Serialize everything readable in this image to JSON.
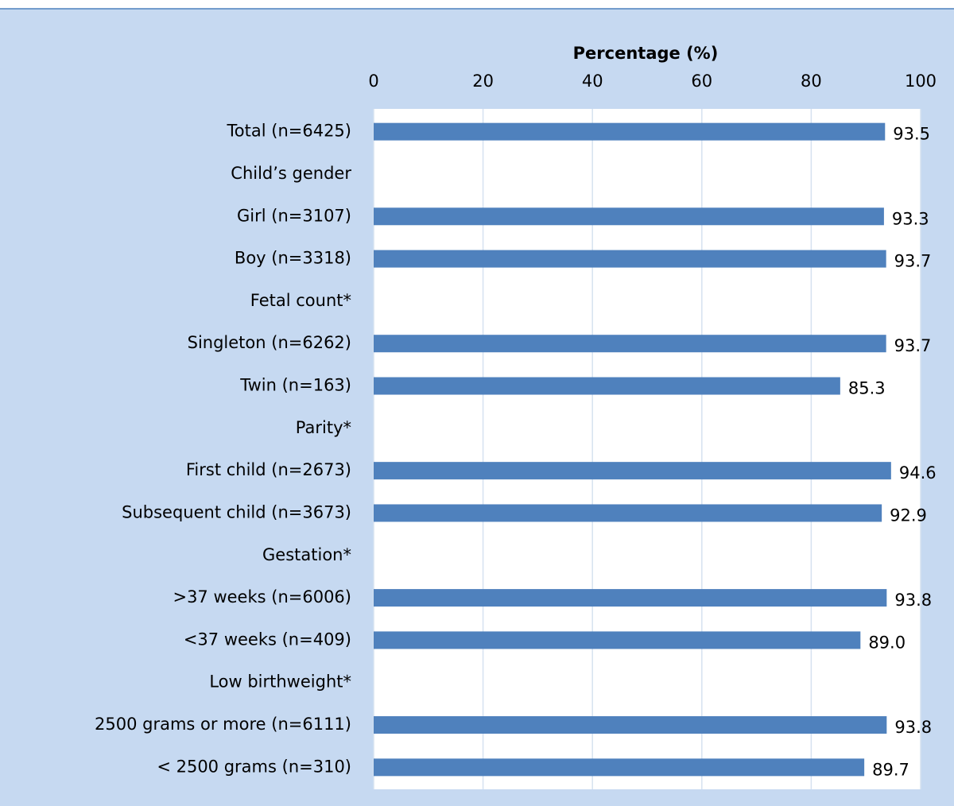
{
  "chart_data": {
    "type": "barh",
    "xlabel": "Percentage (%)",
    "categories": [
      "Total (n=6425)",
      "Child’s gender",
      "Girl (n=3107)",
      "Boy (n=3318)",
      "Fetal count*",
      "Singleton (n=6262)",
      "Twin (n=163)",
      "Parity*",
      "First child (n=2673)",
      "Subsequent child (n=3673)",
      "Gestation*",
      ">37 weeks (n=6006)",
      "<37 weeks (n=409)",
      "Low birthweight*",
      "2500 grams or more (n=6111)",
      "< 2500 grams (n=310)"
    ],
    "values": [
      93.5,
      null,
      93.3,
      93.7,
      null,
      93.7,
      85.3,
      null,
      94.6,
      92.9,
      null,
      93.8,
      89.0,
      null,
      93.8,
      89.7
    ],
    "value_labels": [
      "93.5",
      null,
      "93.3",
      "93.7",
      null,
      "93.7",
      "85.3",
      null,
      "94.6",
      "92.9",
      null,
      "93.8",
      "89.0",
      null,
      "93.8",
      "89.7"
    ],
    "color": "#4f81bd",
    "xlim": [
      0,
      100
    ],
    "xticks": [
      0,
      20,
      40,
      60,
      80,
      100
    ],
    "grid": true
  }
}
